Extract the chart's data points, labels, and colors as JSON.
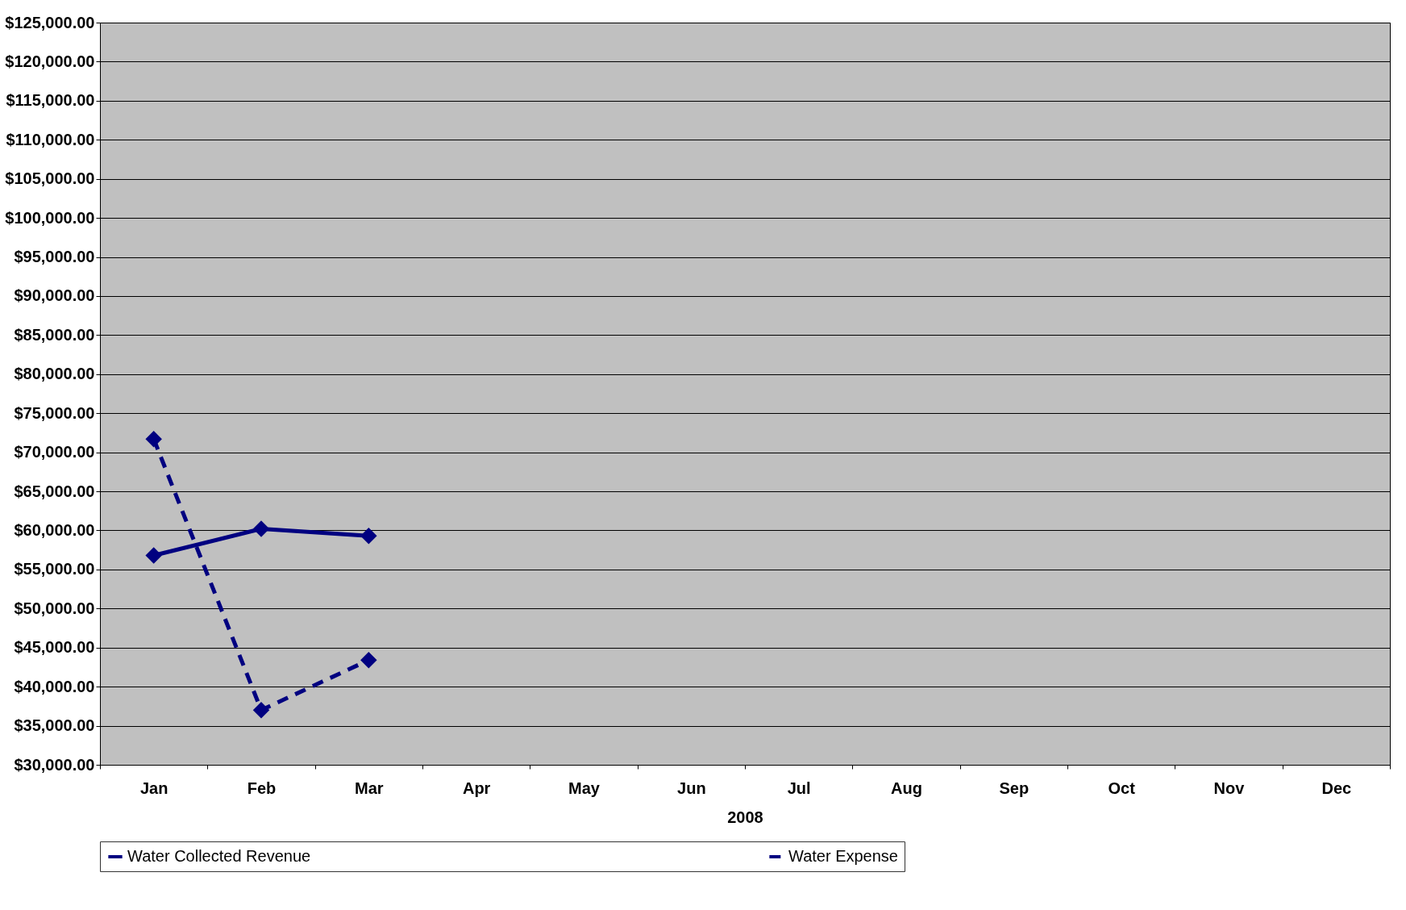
{
  "chart_data": {
    "type": "line",
    "xlabel": "2008",
    "categories": [
      "Jan",
      "Feb",
      "Mar",
      "Apr",
      "May",
      "Jun",
      "Jul",
      "Aug",
      "Sep",
      "Oct",
      "Nov",
      "Dec"
    ],
    "series": [
      {
        "name": "Water Collected Revenue",
        "color": "#000080",
        "line_style": "solid",
        "values": [
          56800,
          60200,
          59300,
          null,
          null,
          null,
          null,
          null,
          null,
          null,
          null,
          null
        ]
      },
      {
        "name": "Water Expense",
        "color": "#000080",
        "line_style": "dashed",
        "values": [
          71700,
          37000,
          43400,
          null,
          null,
          null,
          null,
          null,
          null,
          null,
          null,
          null
        ]
      }
    ],
    "ylim": [
      30000,
      125000
    ],
    "yticks": [
      {
        "value": 30000,
        "label": "$30,000.00"
      },
      {
        "value": 35000,
        "label": "$35,000.00"
      },
      {
        "value": 40000,
        "label": "$40,000.00"
      },
      {
        "value": 45000,
        "label": "$45,000.00"
      },
      {
        "value": 50000,
        "label": "$50,000.00"
      },
      {
        "value": 55000,
        "label": "$55,000.00"
      },
      {
        "value": 60000,
        "label": "$60,000.00"
      },
      {
        "value": 65000,
        "label": "$65,000.00"
      },
      {
        "value": 70000,
        "label": "$70,000.00"
      },
      {
        "value": 75000,
        "label": "$75,000.00"
      },
      {
        "value": 80000,
        "label": "$80,000.00"
      },
      {
        "value": 85000,
        "label": "$85,000.00"
      },
      {
        "value": 90000,
        "label": "$90,000.00"
      },
      {
        "value": 95000,
        "label": "$95,000.00"
      },
      {
        "value": 100000,
        "label": "$100,000.00"
      },
      {
        "value": 105000,
        "label": "$105,000.00"
      },
      {
        "value": 110000,
        "label": "$110,000.00"
      },
      {
        "value": 115000,
        "label": "$115,000.00"
      },
      {
        "value": 120000,
        "label": "$120,000.00"
      },
      {
        "value": 125000,
        "label": "$125,000.00"
      }
    ],
    "grid": "y",
    "legend": "bottom",
    "marker": "diamond"
  }
}
